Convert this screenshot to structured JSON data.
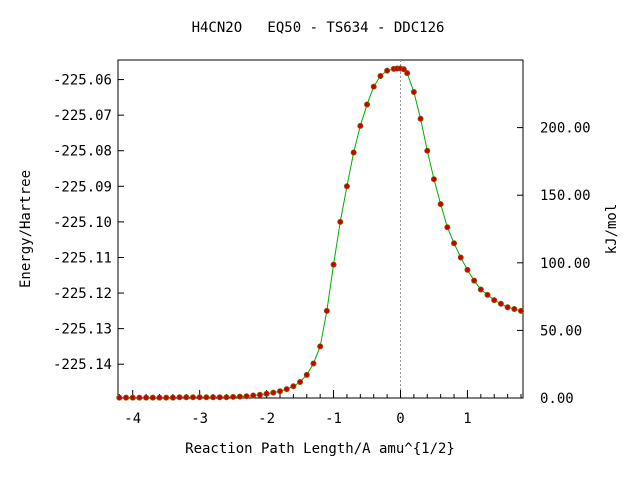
{
  "chart_data": {
    "type": "scatter",
    "title": "H4CN2O   EQ50 - TS634 - DDC126",
    "xlabel": "Reaction Path Length/A amu^{1/2}",
    "ylabel": "Energy/Hartree",
    "y2label": "kJ/mol",
    "xlim": [
      -4.22,
      1.83
    ],
    "ylim": [
      -225.1495,
      -225.0545
    ],
    "y2lim": [
      0,
      250
    ],
    "xticks": [
      "-4",
      "-3",
      "-2",
      "-1",
      "0",
      "1"
    ],
    "xtick_values": [
      -4,
      -3,
      -2,
      -1,
      0,
      1
    ],
    "yticks": [
      "-225.06",
      "-225.07",
      "-225.08",
      "-225.09",
      "-225.10",
      "-225.11",
      "-225.12",
      "-225.13",
      "-225.14"
    ],
    "ytick_values": [
      -225.06,
      -225.07,
      -225.08,
      -225.09,
      -225.1,
      -225.11,
      -225.12,
      -225.13,
      -225.14
    ],
    "y2ticks": [
      "0.00",
      "50.00",
      "100.00",
      "150.00",
      "200.00"
    ],
    "y2tick_values": [
      0,
      50,
      100,
      150,
      200
    ],
    "ts_marker_x": 0,
    "grid": false,
    "legend": "none",
    "colors": {
      "curve": "#00aa00",
      "points": "#cc0000",
      "point_edge": "#8a5a00",
      "ts_line": "#999999"
    },
    "x": [
      -4.2,
      -4.1,
      -4.0,
      -3.9,
      -3.8,
      -3.7,
      -3.6,
      -3.5,
      -3.4,
      -3.3,
      -3.2,
      -3.1,
      -3.0,
      -2.9,
      -2.8,
      -2.7,
      -2.6,
      -2.5,
      -2.4,
      -2.3,
      -2.2,
      -2.1,
      -2.0,
      -1.9,
      -1.8,
      -1.7,
      -1.6,
      -1.5,
      -1.4,
      -1.3,
      -1.2,
      -1.1,
      -1.0,
      -0.9,
      -0.8,
      -0.7,
      -0.6,
      -0.5,
      -0.4,
      -0.3,
      -0.2,
      -0.1,
      -0.05,
      0.0,
      0.05,
      0.1,
      0.2,
      0.3,
      0.4,
      0.5,
      0.6,
      0.7,
      0.8,
      0.9,
      1.0,
      1.1,
      1.2,
      1.3,
      1.4,
      1.5,
      1.6,
      1.7,
      1.8
    ],
    "y": [
      -225.1494,
      -225.1494,
      -225.1494,
      -225.1494,
      -225.1494,
      -225.1494,
      -225.1494,
      -225.1494,
      -225.1494,
      -225.1493,
      -225.1493,
      -225.1493,
      -225.1493,
      -225.1493,
      -225.1493,
      -225.1493,
      -225.1493,
      -225.1492,
      -225.1491,
      -225.149,
      -225.1488,
      -225.1486,
      -225.1483,
      -225.148,
      -225.1476,
      -225.147,
      -225.1462,
      -225.145,
      -225.143,
      -225.1398,
      -225.135,
      -225.125,
      -225.112,
      -225.1,
      -225.09,
      -225.0805,
      -225.073,
      -225.067,
      -225.062,
      -225.059,
      -225.0575,
      -225.057,
      -225.0569,
      -225.0569,
      -225.0571,
      -225.0582,
      -225.0635,
      -225.071,
      -225.08,
      -225.088,
      -225.095,
      -225.1015,
      -225.106,
      -225.11,
      -225.1135,
      -225.1165,
      -225.119,
      -225.1205,
      -225.122,
      -225.123,
      -225.124,
      -225.1245,
      -225.125
    ]
  }
}
